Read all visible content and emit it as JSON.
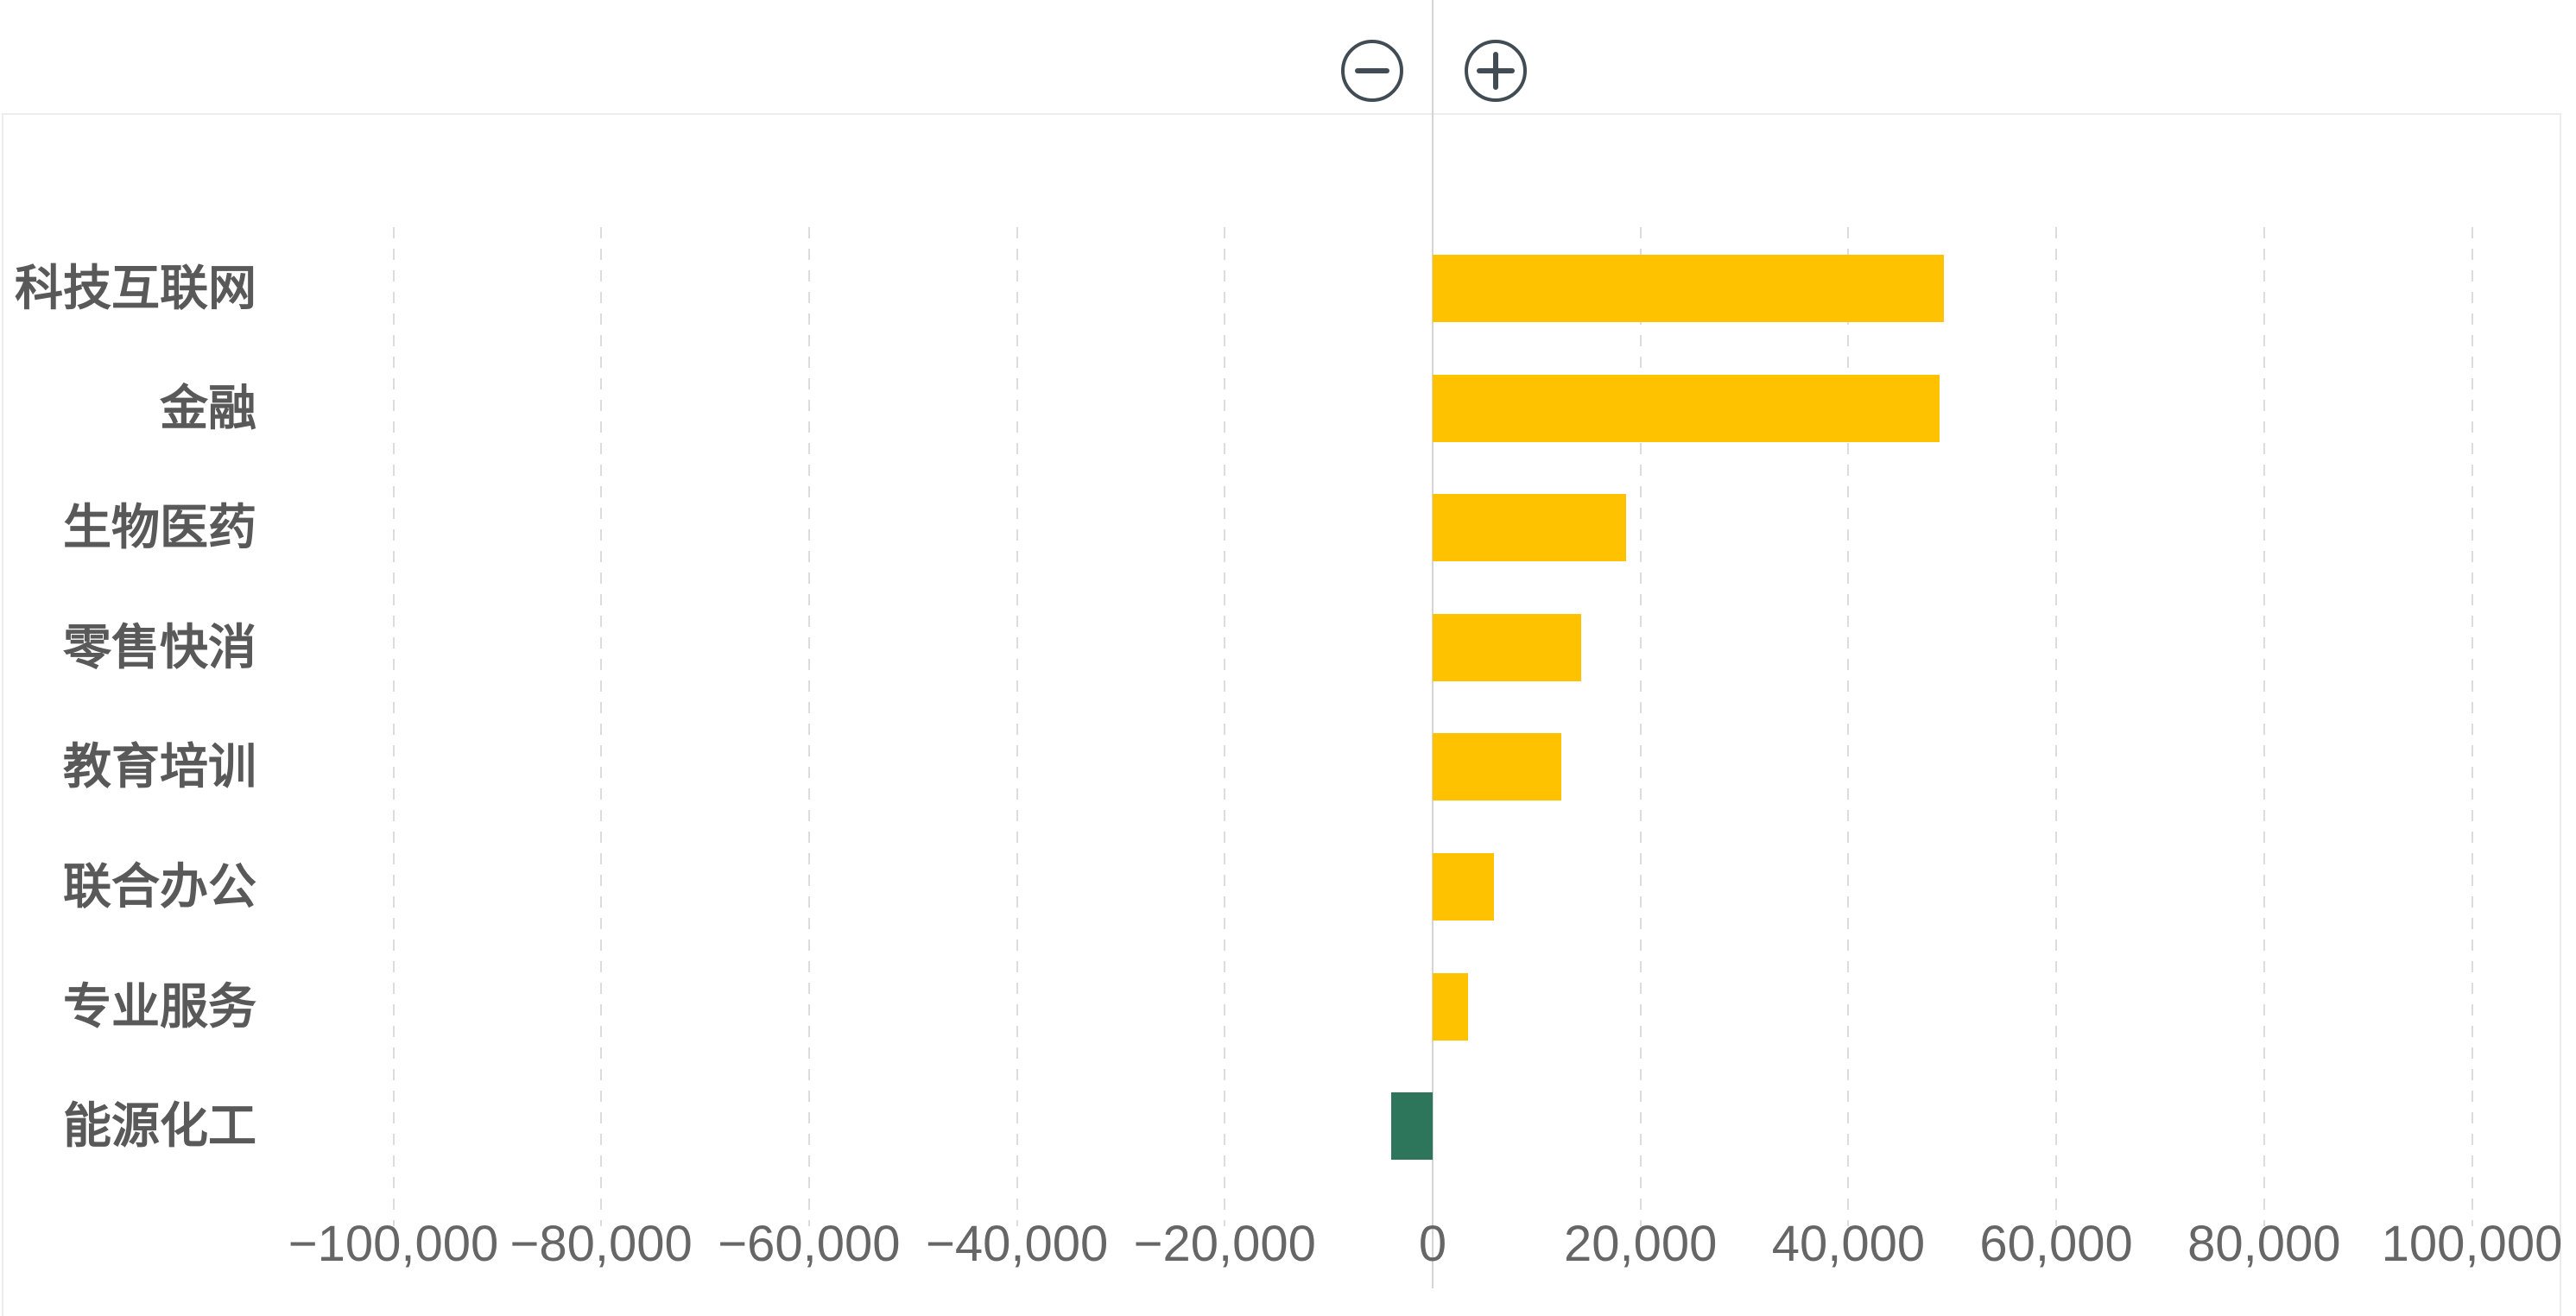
{
  "chart_data": {
    "type": "bar",
    "orientation": "horizontal",
    "title": "",
    "xlabel": "",
    "ylabel": "",
    "categories": [
      "科技互联网",
      "金融",
      "生物医药",
      "零售快消",
      "教育培训",
      "联合办公",
      "专业服务",
      "能源化工"
    ],
    "values": [
      49200,
      48800,
      18600,
      14300,
      12400,
      5900,
      3400,
      -4000
    ],
    "xlim": [
      -100000,
      100000
    ],
    "x_ticks": [
      -100000,
      -80000,
      -60000,
      -40000,
      -20000,
      0,
      20000,
      40000,
      60000,
      80000,
      100000
    ],
    "x_tick_labels": [
      "−100,000",
      "−80,000",
      "−60,000",
      "−40,000",
      "−20,000",
      "0",
      "20,000",
      "40,000",
      "60,000",
      "80,000",
      "100,000"
    ],
    "grid": "vertical-dashed",
    "legend": "none",
    "colors": {
      "positive_bar": "#FEC201",
      "negative_bar": "#2D755B"
    }
  },
  "toolbar": {
    "zoom_out_icon": "minus-circle-icon",
    "zoom_in_icon": "plus-circle-icon"
  },
  "colors": {
    "background": "#FFFFFF",
    "category_label": "#595959",
    "tick_label": "#666666",
    "gridline": "#DCDCDC",
    "zero_line": "#D4D4D4",
    "card_border": "#ECECEC",
    "button": "#424C55"
  }
}
